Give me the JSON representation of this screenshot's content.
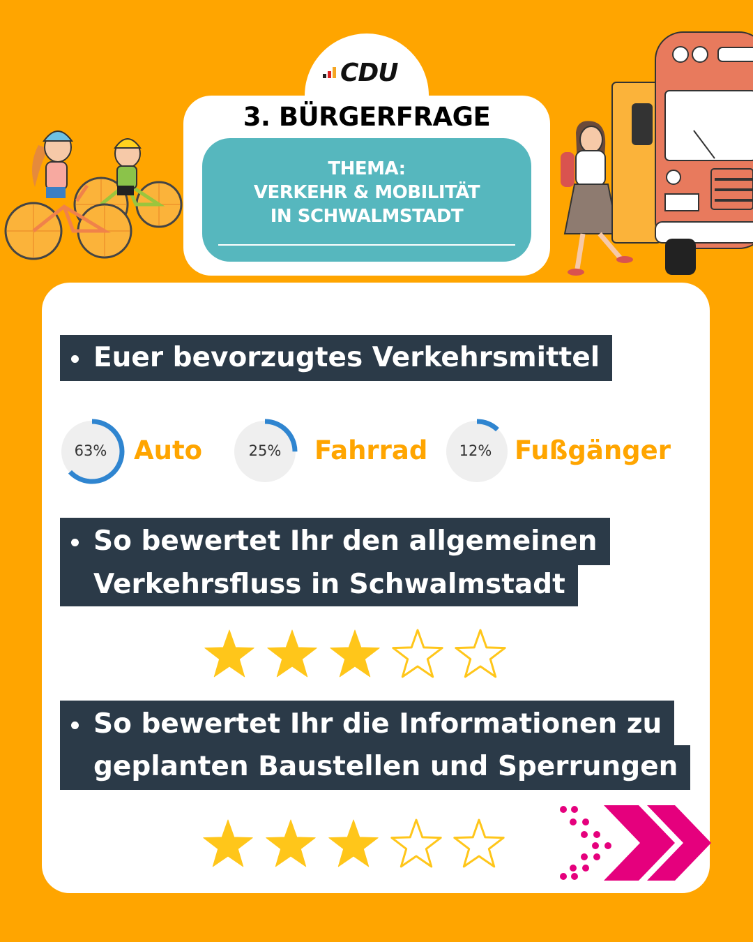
{
  "header": {
    "logo_text": "CDU",
    "title": "3. BÜRGERFRAGE",
    "thema_lines": [
      "THEMA:",
      "VERKEHR & MOBILITÄT",
      "IN SCHWALMSTADT"
    ]
  },
  "questions": [
    {
      "lines": [
        "Euer bevorzugtes Verkehrsmittel"
      ]
    },
    {
      "lines": [
        "So bewertet Ihr den allgemeinen",
        "Verkehrsfluss in Schwalmstadt"
      ]
    },
    {
      "lines": [
        "So bewertet Ihr die Informationen zu",
        "geplanten Baustellen und Sperrungen"
      ]
    }
  ],
  "modes": [
    {
      "label": "Auto",
      "percent_text": "63%",
      "percent": 63
    },
    {
      "label": "Fahrrad",
      "percent_text": "25%",
      "percent": 25
    },
    {
      "label": "Fußgänger",
      "percent_text": "12%",
      "percent": 12
    }
  ],
  "ratings": [
    {
      "filled": 3,
      "max": 5
    },
    {
      "filled": 3,
      "max": 5
    }
  ],
  "colors": {
    "background": "#FFA500",
    "teal": "#56B7BE",
    "dark_bar": "#2B3A48",
    "donut_ring": "#2F85D0",
    "donut_track": "#EFEFEF",
    "star": "#FFC61A",
    "chevron": "#E5007D"
  },
  "icons": [
    "cyclists-illustration",
    "bus-illustration",
    "pedestrian-illustration",
    "chevron-right-icon"
  ]
}
